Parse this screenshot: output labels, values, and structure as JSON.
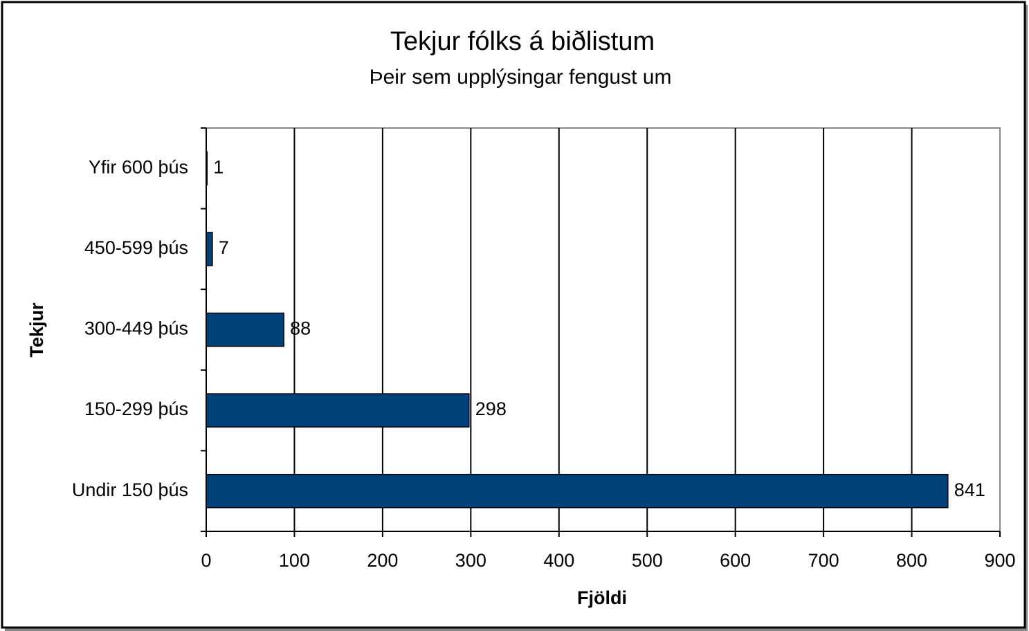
{
  "chart_data": {
    "type": "bar",
    "orientation": "horizontal",
    "title": "Tekjur fólks á biðlistum",
    "subtitle": "Þeir sem upplýsingar fengust um",
    "x_label": "Fjöldi",
    "y_label": "Tekjur",
    "categories": [
      "Yfir 600 þús",
      "450-599 þús",
      "300-449 þús",
      "150-299 þús",
      "Undir 150 þús"
    ],
    "values": [
      1,
      7,
      88,
      298,
      841
    ],
    "color": "#00437a",
    "xlim": [
      0,
      900
    ],
    "xticks": [
      0,
      100,
      200,
      300,
      400,
      500,
      600,
      700,
      800,
      900
    ],
    "grid": true
  }
}
